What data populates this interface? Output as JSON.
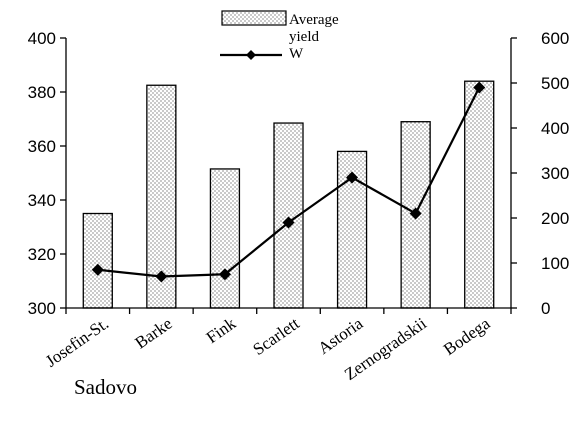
{
  "chart_data": {
    "type": "bar",
    "categories": [
      "Josefin-St.",
      "Barke",
      "Fink",
      "Scarlett",
      "Astoria",
      "Zernogradskii",
      "Bodega"
    ],
    "series": [
      {
        "name": "Average yield",
        "type": "bar",
        "axis": "left",
        "values": [
          335,
          382.5,
          351.5,
          368.5,
          358,
          369,
          384
        ]
      },
      {
        "name": "W",
        "type": "line",
        "axis": "right",
        "marker": "diamond",
        "values": [
          85,
          70,
          75,
          190,
          290,
          210,
          490
        ]
      }
    ],
    "left_axis": {
      "ylim": [
        300,
        400
      ],
      "ticks": [
        300,
        320,
        340,
        360,
        380,
        400
      ]
    },
    "right_axis": {
      "ylim": [
        0,
        600
      ],
      "ticks": [
        0,
        100,
        200,
        300,
        400,
        500,
        600
      ]
    },
    "grid": false,
    "legend_position": "top-center",
    "caption": "Sadovo"
  }
}
